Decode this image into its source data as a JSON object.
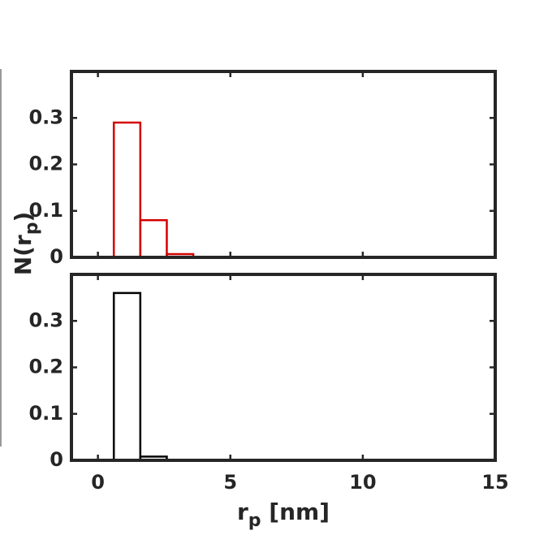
{
  "chart_data": [
    {
      "type": "histogram",
      "color": "#d40000",
      "bins": [
        0.6,
        1.6,
        2.6,
        3.6
      ],
      "values": [
        0.29,
        0.08,
        0.007
      ],
      "xlim": [
        -1,
        15
      ],
      "xticks": [
        0,
        5,
        10,
        15
      ],
      "ylim": [
        0,
        0.4
      ],
      "yticks": [
        0,
        0.1,
        0.2,
        0.3
      ],
      "ylabel": [
        "N(r",
        "p",
        ")"
      ]
    },
    {
      "type": "histogram",
      "color": "#000000",
      "bins": [
        0.6,
        1.6,
        2.6
      ],
      "values": [
        0.36,
        0.008
      ],
      "xlim": [
        -1,
        15
      ],
      "xticks": [
        0,
        5,
        10,
        15
      ],
      "ylim": [
        0,
        0.4
      ],
      "yticks": [
        0,
        0.1,
        0.2,
        0.3
      ],
      "xlabel": [
        "r",
        "p",
        " [nm]"
      ]
    }
  ]
}
